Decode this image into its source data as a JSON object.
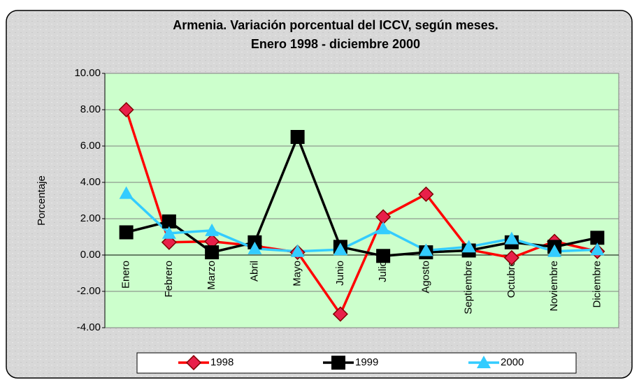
{
  "chart_data": {
    "type": "line",
    "title": "Armenia.  Variación porcentual del ICCV, según meses.",
    "subtitle": "Enero  1998 - diciembre 2000",
    "y_label": "Porcentaje",
    "categories": [
      "Enero",
      "Febrero",
      "Marzo",
      "Abril",
      "Mayo",
      "Junio",
      "Julio",
      "Agosto",
      "Septiembre",
      "Octubre",
      "Noviembre",
      "Diciembre"
    ],
    "series": [
      {
        "name": "1998",
        "color": "#ff0000",
        "values": [
          8.0,
          0.7,
          0.75,
          0.5,
          0.15,
          -3.25,
          2.1,
          3.35,
          0.3,
          -0.15,
          0.75,
          0.2
        ]
      },
      {
        "name": "1999",
        "color": "#000000",
        "values": [
          1.25,
          1.85,
          0.15,
          0.7,
          6.5,
          0.45,
          -0.05,
          0.15,
          0.25,
          0.7,
          0.45,
          0.95
        ]
      },
      {
        "name": "2000",
        "color": "#33ccff",
        "values": [
          3.4,
          1.2,
          1.35,
          0.35,
          0.2,
          0.3,
          1.45,
          0.25,
          0.45,
          0.9,
          0.2,
          0.3
        ]
      }
    ],
    "ylim": [
      -4,
      10
    ],
    "yticks": [
      {
        "value": -4,
        "label": "-4.00"
      },
      {
        "value": -2,
        "label": "-2.00"
      },
      {
        "value": 0,
        "label": "0.00"
      },
      {
        "value": 2,
        "label": "2.00"
      },
      {
        "value": 4,
        "label": "4.00"
      },
      {
        "value": 6,
        "label": "6.00"
      },
      {
        "value": 8,
        "label": "8.00"
      },
      {
        "value": 10,
        "label": "10.00"
      }
    ],
    "grid": true,
    "legend": "bottom"
  }
}
